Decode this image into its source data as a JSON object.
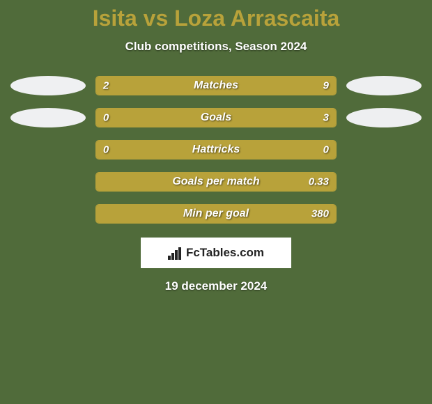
{
  "background_color": "#506b3a",
  "title": {
    "text": "Isita vs Loza Arrascaita",
    "color": "#b8a23a",
    "fontsize": 32
  },
  "subtitle": {
    "text": "Club competitions, Season 2024",
    "color": "#ffffff",
    "fontsize": 17
  },
  "colors": {
    "text_white": "#ffffff",
    "bar_color": "#b8a23a",
    "bar_empty": "#506b3a",
    "avatar_left": "#eff0f2",
    "avatar_right": "#eeeff1",
    "logo_bg": "#ffffff",
    "logo_fg": "#222222"
  },
  "avatars": {
    "left_row0": true,
    "right_row0": true,
    "left_row1": true,
    "right_row1": true
  },
  "bars": [
    {
      "label": "Matches",
      "left_value": "2",
      "right_value": "9",
      "left_pct": 18,
      "right_pct": 82,
      "show_left_avatar": true,
      "show_right_avatar": true
    },
    {
      "label": "Goals",
      "left_value": "0",
      "right_value": "3",
      "left_pct": 0,
      "right_pct": 100,
      "show_left_avatar": true,
      "show_right_avatar": true
    },
    {
      "label": "Hattricks",
      "left_value": "0",
      "right_value": "0",
      "left_pct": 100,
      "right_pct": 0,
      "show_left_avatar": false,
      "show_right_avatar": false
    },
    {
      "label": "Goals per match",
      "left_value": "",
      "right_value": "0.33",
      "left_pct": 0,
      "right_pct": 100,
      "show_left_avatar": false,
      "show_right_avatar": false
    },
    {
      "label": "Min per goal",
      "left_value": "",
      "right_value": "380",
      "left_pct": 0,
      "right_pct": 100,
      "show_left_avatar": false,
      "show_right_avatar": false
    }
  ],
  "logo": {
    "text": "FcTables.com"
  },
  "date": {
    "text": "19 december 2024"
  }
}
